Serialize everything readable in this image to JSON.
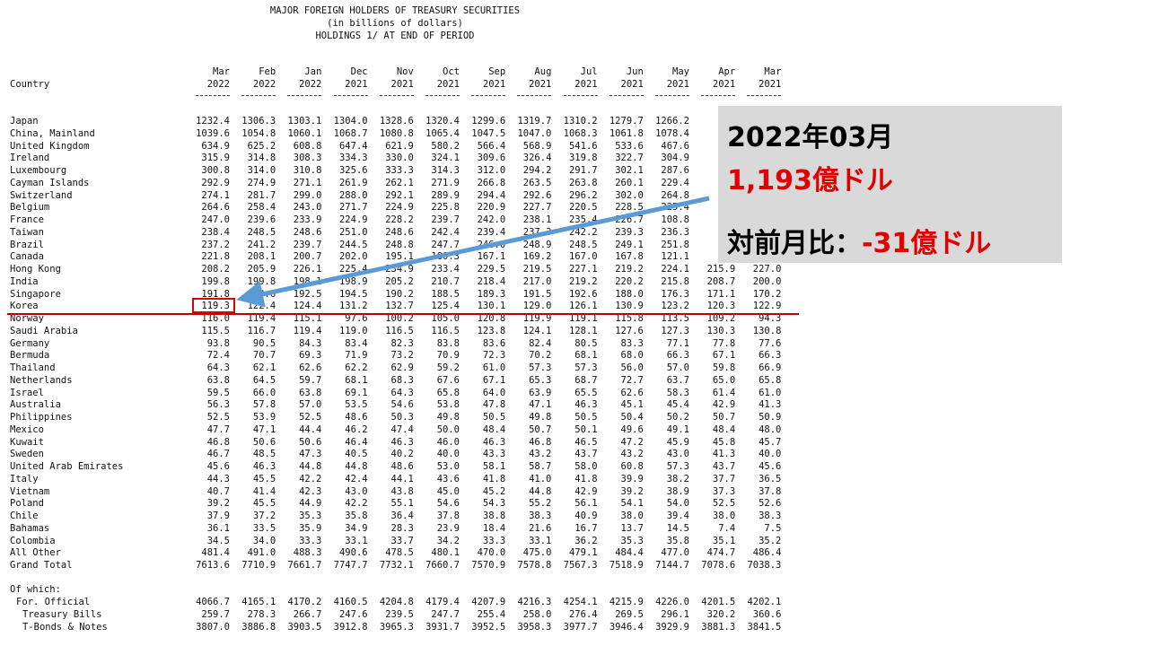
{
  "header": {
    "title": "MAJOR FOREIGN HOLDERS OF TREASURY SECURITIES",
    "subtitle": "(in billions of dollars)",
    "note": "HOLDINGS 1/ AT END OF PERIOD"
  },
  "table": {
    "country_header": "Country",
    "columns": [
      {
        "month": "Mar",
        "year": "2022"
      },
      {
        "month": "Feb",
        "year": "2022"
      },
      {
        "month": "Jan",
        "year": "2022"
      },
      {
        "month": "Dec",
        "year": "2021"
      },
      {
        "month": "Nov",
        "year": "2021"
      },
      {
        "month": "Oct",
        "year": "2021"
      },
      {
        "month": "Sep",
        "year": "2021"
      },
      {
        "month": "Aug",
        "year": "2021"
      },
      {
        "month": "Jul",
        "year": "2021"
      },
      {
        "month": "Jun",
        "year": "2021"
      },
      {
        "month": "May",
        "year": "2021"
      },
      {
        "month": "Apr",
        "year": "2021"
      },
      {
        "month": "Mar",
        "year": "2021"
      }
    ],
    "rows": [
      {
        "country": "Japan",
        "values": [
          "1232.4",
          "1306.3",
          "1303.1",
          "1304.0",
          "1328.6",
          "1320.4",
          "1299.6",
          "1319.7",
          "1310.2",
          "1279.7",
          "1266.2",
          null,
          null
        ]
      },
      {
        "country": "China, Mainland",
        "values": [
          "1039.6",
          "1054.8",
          "1060.1",
          "1068.7",
          "1080.8",
          "1065.4",
          "1047.5",
          "1047.0",
          "1068.3",
          "1061.8",
          "1078.4",
          null,
          null
        ]
      },
      {
        "country": "United Kingdom",
        "values": [
          "634.9",
          "625.2",
          "608.8",
          "647.4",
          "621.9",
          "580.2",
          "566.4",
          "568.9",
          "541.6",
          "533.6",
          "467.6",
          null,
          null
        ]
      },
      {
        "country": "Ireland",
        "values": [
          "315.9",
          "314.8",
          "308.3",
          "334.3",
          "330.0",
          "324.1",
          "309.6",
          "326.4",
          "319.8",
          "322.7",
          "304.9",
          null,
          null
        ]
      },
      {
        "country": "Luxembourg",
        "values": [
          "300.8",
          "314.0",
          "310.8",
          "325.6",
          "333.3",
          "314.3",
          "312.0",
          "294.2",
          "291.7",
          "302.1",
          "287.6",
          null,
          null
        ]
      },
      {
        "country": "Cayman Islands",
        "values": [
          "292.9",
          "274.9",
          "271.1",
          "261.9",
          "262.1",
          "271.9",
          "266.8",
          "263.5",
          "263.8",
          "260.1",
          "229.4",
          null,
          null
        ]
      },
      {
        "country": "Switzerland",
        "values": [
          "274.1",
          "281.7",
          "299.0",
          "288.0",
          "292.1",
          "289.9",
          "294.4",
          "292.6",
          "296.2",
          "302.0",
          "264.8",
          null,
          null
        ]
      },
      {
        "country": "Belgium",
        "values": [
          "264.6",
          "258.4",
          "243.0",
          "271.7",
          "224.9",
          "225.8",
          "220.9",
          "227.7",
          "220.5",
          "228.5",
          "225.4",
          null,
          null
        ]
      },
      {
        "country": "France",
        "values": [
          "247.0",
          "239.6",
          "233.9",
          "224.9",
          "228.2",
          "239.7",
          "242.0",
          "238.1",
          "235.4",
          "226.7",
          "108.8",
          null,
          null
        ]
      },
      {
        "country": "Taiwan",
        "values": [
          "238.4",
          "248.5",
          "248.6",
          "251.0",
          "248.6",
          "242.4",
          "239.4",
          "237.3",
          "242.2",
          "239.3",
          "236.3",
          null,
          null
        ]
      },
      {
        "country": "Brazil",
        "values": [
          "237.2",
          "241.2",
          "239.7",
          "244.5",
          "248.8",
          "247.7",
          "246.0",
          "248.9",
          "248.5",
          "249.1",
          "251.8",
          null,
          null
        ]
      },
      {
        "country": "Canada",
        "values": [
          "221.8",
          "208.1",
          "200.7",
          "202.0",
          "195.1",
          "180.3",
          "167.1",
          "169.2",
          "167.0",
          "167.8",
          "121.1",
          null,
          null
        ]
      },
      {
        "country": "Hong Kong",
        "values": [
          "208.2",
          "205.9",
          "226.1",
          "225.4",
          "234.9",
          "233.4",
          "229.5",
          "219.5",
          "227.1",
          "219.2",
          "224.1",
          "215.9",
          "227.0"
        ]
      },
      {
        "country": "India",
        "values": [
          "199.8",
          "199.8",
          "198.1",
          "198.9",
          "205.2",
          "210.7",
          "218.4",
          "217.0",
          "219.2",
          "220.2",
          "215.8",
          "208.7",
          "200.0"
        ]
      },
      {
        "country": "Singapore",
        "values": [
          "191.8",
          "190.6",
          "192.5",
          "194.5",
          "190.2",
          "188.5",
          "189.3",
          "191.5",
          "192.6",
          "188.0",
          "176.3",
          "171.1",
          "170.2"
        ]
      },
      {
        "country": "Korea",
        "values": [
          "119.3",
          "122.4",
          "124.4",
          "131.2",
          "132.7",
          "125.4",
          "130.1",
          "129.0",
          "126.1",
          "130.9",
          "123.2",
          "120.3",
          "122.9"
        ]
      },
      {
        "country": "Norway",
        "values": [
          "116.0",
          "119.4",
          "115.1",
          "97.6",
          "100.2",
          "105.0",
          "120.8",
          "119.9",
          "119.1",
          "115.8",
          "113.5",
          "109.2",
          "94.3"
        ]
      },
      {
        "country": "Saudi Arabia",
        "values": [
          "115.5",
          "116.7",
          "119.4",
          "119.0",
          "116.5",
          "116.5",
          "123.8",
          "124.1",
          "128.1",
          "127.6",
          "127.3",
          "130.3",
          "130.8"
        ]
      },
      {
        "country": "Germany",
        "values": [
          "93.8",
          "90.5",
          "84.3",
          "83.4",
          "82.3",
          "83.8",
          "83.6",
          "82.4",
          "80.5",
          "83.3",
          "77.1",
          "77.8",
          "77.6"
        ]
      },
      {
        "country": "Bermuda",
        "values": [
          "72.4",
          "70.7",
          "69.3",
          "71.9",
          "73.2",
          "70.9",
          "72.3",
          "70.2",
          "68.1",
          "68.0",
          "66.3",
          "67.1",
          "66.3"
        ]
      },
      {
        "country": "Thailand",
        "values": [
          "64.3",
          "62.1",
          "62.6",
          "62.2",
          "62.9",
          "59.2",
          "61.0",
          "57.3",
          "57.3",
          "56.0",
          "57.0",
          "59.8",
          "66.9"
        ]
      },
      {
        "country": "Netherlands",
        "values": [
          "63.8",
          "64.5",
          "59.7",
          "68.1",
          "68.3",
          "67.6",
          "67.1",
          "65.3",
          "68.7",
          "72.7",
          "63.7",
          "65.0",
          "65.8"
        ]
      },
      {
        "country": "Israel",
        "values": [
          "59.5",
          "66.0",
          "63.8",
          "69.1",
          "64.3",
          "65.8",
          "64.0",
          "63.9",
          "65.5",
          "62.6",
          "58.3",
          "61.4",
          "61.0"
        ]
      },
      {
        "country": "Australia",
        "values": [
          "56.3",
          "57.8",
          "57.0",
          "53.5",
          "54.6",
          "53.8",
          "47.8",
          "47.1",
          "46.3",
          "45.1",
          "45.4",
          "42.9",
          "41.3"
        ]
      },
      {
        "country": "Philippines",
        "values": [
          "52.5",
          "53.9",
          "52.5",
          "48.6",
          "50.3",
          "49.8",
          "50.5",
          "49.8",
          "50.5",
          "50.4",
          "50.2",
          "50.7",
          "50.9"
        ]
      },
      {
        "country": "Mexico",
        "values": [
          "47.7",
          "47.1",
          "44.4",
          "46.2",
          "47.4",
          "50.0",
          "48.4",
          "50.7",
          "50.1",
          "49.6",
          "49.1",
          "48.4",
          "48.0"
        ]
      },
      {
        "country": "Kuwait",
        "values": [
          "46.8",
          "50.6",
          "50.6",
          "46.4",
          "46.3",
          "46.0",
          "46.3",
          "46.8",
          "46.5",
          "47.2",
          "45.9",
          "45.8",
          "45.7"
        ]
      },
      {
        "country": "Sweden",
        "values": [
          "46.7",
          "48.5",
          "47.3",
          "40.5",
          "40.2",
          "40.0",
          "43.3",
          "43.2",
          "43.7",
          "43.2",
          "43.0",
          "41.3",
          "40.0"
        ]
      },
      {
        "country": "United Arab Emirates",
        "values": [
          "45.6",
          "46.3",
          "44.8",
          "44.8",
          "48.6",
          "53.0",
          "58.1",
          "58.7",
          "58.0",
          "60.8",
          "57.3",
          "43.7",
          "45.6"
        ]
      },
      {
        "country": "Italy",
        "values": [
          "44.3",
          "45.5",
          "42.2",
          "42.4",
          "44.1",
          "43.6",
          "41.8",
          "41.0",
          "41.8",
          "39.9",
          "38.2",
          "37.7",
          "36.5"
        ]
      },
      {
        "country": "Vietnam",
        "values": [
          "40.7",
          "41.4",
          "42.3",
          "43.0",
          "43.8",
          "45.0",
          "45.2",
          "44.8",
          "42.9",
          "39.2",
          "38.9",
          "37.3",
          "37.8"
        ]
      },
      {
        "country": "Poland",
        "values": [
          "39.2",
          "45.5",
          "44.9",
          "42.2",
          "55.1",
          "54.6",
          "54.3",
          "55.2",
          "56.1",
          "54.1",
          "54.0",
          "52.5",
          "52.6"
        ]
      },
      {
        "country": "Chile",
        "values": [
          "37.9",
          "37.2",
          "35.3",
          "35.8",
          "36.4",
          "37.8",
          "38.8",
          "38.3",
          "40.9",
          "38.0",
          "39.4",
          "38.0",
          "38.3"
        ]
      },
      {
        "country": "Bahamas",
        "values": [
          "36.1",
          "33.5",
          "35.9",
          "34.9",
          "28.3",
          "23.9",
          "18.4",
          "21.6",
          "16.7",
          "13.7",
          "14.5",
          "7.4",
          "7.5"
        ]
      },
      {
        "country": "Colombia",
        "values": [
          "34.5",
          "34.0",
          "33.3",
          "33.1",
          "33.7",
          "34.2",
          "33.3",
          "33.1",
          "36.2",
          "35.3",
          "35.8",
          "35.1",
          "35.2"
        ]
      },
      {
        "country": "All Other",
        "values": [
          "481.4",
          "491.0",
          "488.3",
          "490.6",
          "478.5",
          "480.1",
          "470.0",
          "475.0",
          "479.1",
          "484.4",
          "477.0",
          "474.7",
          "486.4"
        ]
      },
      {
        "country": "Grand Total",
        "values": [
          "7613.6",
          "7710.9",
          "7661.7",
          "7747.7",
          "7732.1",
          "7660.7",
          "7570.9",
          "7578.8",
          "7567.3",
          "7518.9",
          "7144.7",
          "7078.6",
          "7038.3"
        ]
      }
    ],
    "of_which_label": "Of which:",
    "sub_rows": [
      {
        "country": "For. Official",
        "values": [
          "4066.7",
          "4165.1",
          "4170.2",
          "4160.5",
          "4204.8",
          "4179.4",
          "4207.9",
          "4216.3",
          "4254.1",
          "4215.9",
          "4226.0",
          "4201.5",
          "4202.1"
        ]
      },
      {
        "country": "Treasury Bills",
        "values": [
          "259.7",
          "278.3",
          "266.7",
          "247.6",
          "239.5",
          "247.7",
          "255.4",
          "258.0",
          "276.4",
          "269.5",
          "296.1",
          "320.2",
          "360.6"
        ]
      },
      {
        "country": "T-Bonds & Notes",
        "values": [
          "3807.0",
          "3886.8",
          "3903.5",
          "3912.8",
          "3965.3",
          "3931.7",
          "3952.5",
          "3958.3",
          "3977.7",
          "3946.4",
          "3929.9",
          "3881.3",
          "3841.5"
        ]
      }
    ]
  },
  "callout": {
    "date": "2022年03月",
    "amount": "1,193億ドル",
    "change_label": "対前月比：",
    "change_value": "-31億ドル"
  }
}
